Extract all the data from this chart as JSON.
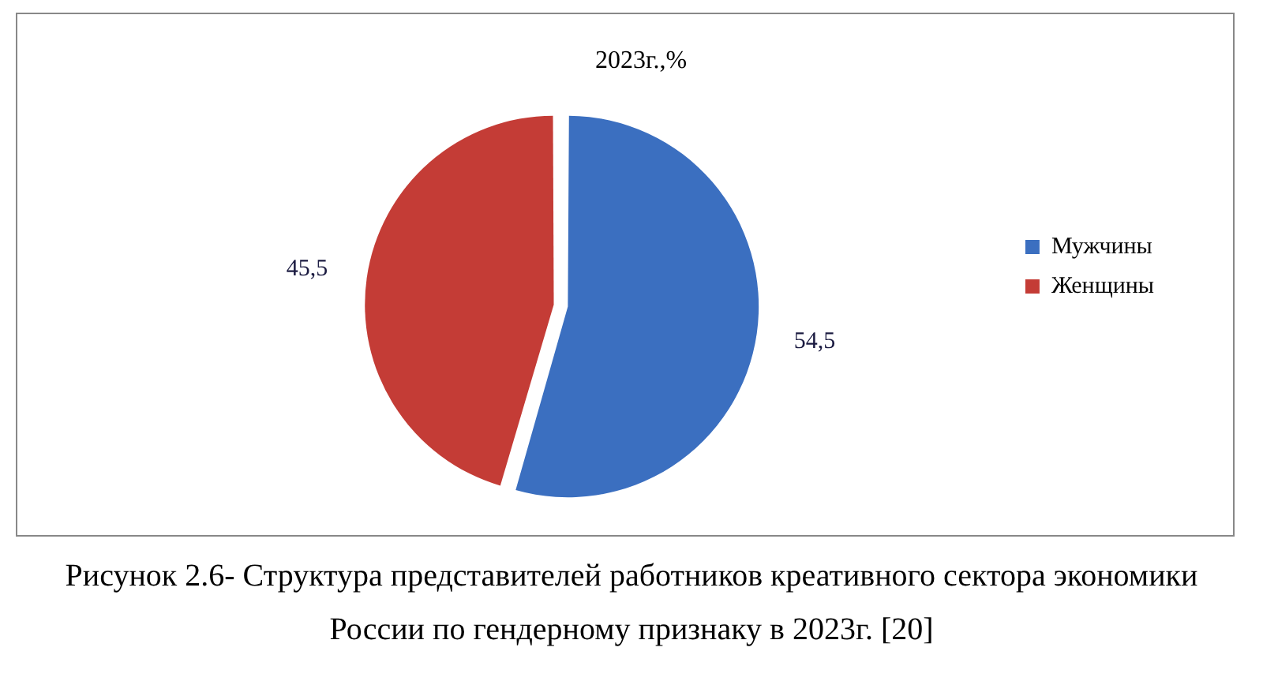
{
  "chart_data": {
    "type": "pie",
    "title": "2023г.,%",
    "categories": [
      "Мужчины",
      "Женщины"
    ],
    "values": [
      54.5,
      45.5
    ],
    "value_labels": [
      "54,5",
      "45,5"
    ],
    "colors": [
      "#3b6fc0",
      "#c43c36"
    ],
    "legend": "right",
    "annotations": [
      "Рисунок 2.6- Структура представителей работников креативного сектора экономики России по гендерному признаку в 2023г. [20]"
    ]
  }
}
